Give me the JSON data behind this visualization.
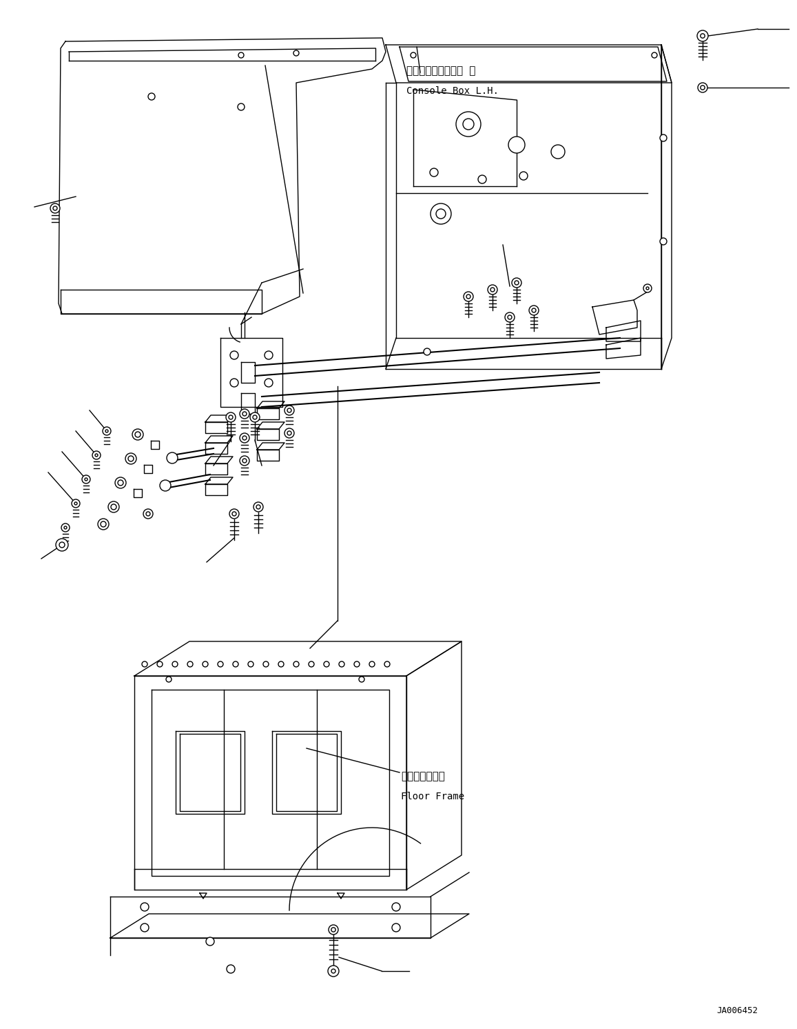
{
  "background_color": "#ffffff",
  "line_color": "#000000",
  "lw": 1.0,
  "label_console_box_jp": "コンソールボックス 左",
  "label_console_box_en": "Console Box L.H.",
  "label_floor_frame_jp": "フロアフレーム",
  "label_floor_frame_en": "Floor Frame",
  "label_id": "JA006452"
}
